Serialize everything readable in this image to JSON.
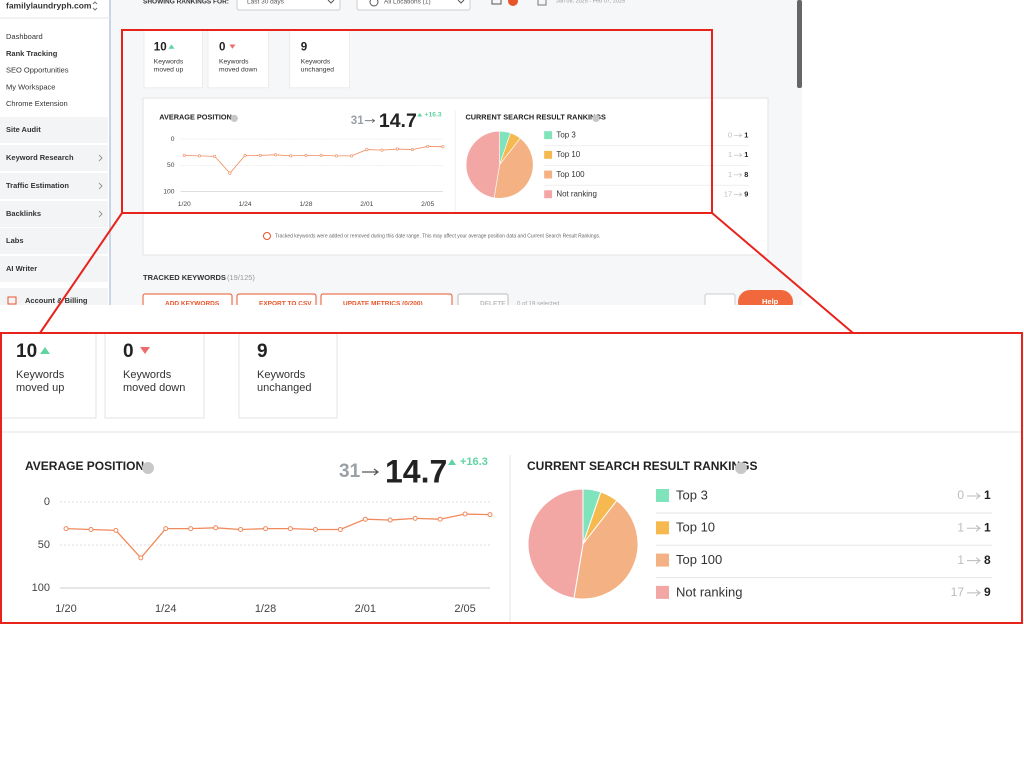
{
  "sidebar": {
    "site": "familylaundryph.com",
    "nav": [
      "Dashboard",
      "Rank Tracking",
      "SEO Opportunities",
      "My Workspace",
      "Chrome Extension"
    ],
    "sections": [
      "Site Audit",
      "Keyword Research",
      "Traffic Estimation",
      "Backlinks",
      "Labs",
      "AI Writer",
      "Account & Billing"
    ]
  },
  "toolbar": {
    "label": "SHOWING RANKINGS FOR:",
    "period": "Last 30 days",
    "location": "All Locations (1)",
    "date_range": "Jan 08, 2025 - Feb 07, 2025"
  },
  "stats": [
    {
      "value": 10,
      "label": "Keywords moved up"
    },
    {
      "value": 0,
      "label": "Keywords moved down"
    },
    {
      "value": 9,
      "label": "Keywords unchanged"
    }
  ],
  "chart_data": [
    {
      "type": "line",
      "title": "AVERAGE POSITION",
      "start_value": 31,
      "current_value": 14.7,
      "change": "+16.3",
      "categories": [
        "1/20",
        null,
        null,
        null,
        "1/24",
        null,
        null,
        null,
        "1/28",
        null,
        null,
        null,
        "2/01",
        null,
        null,
        null,
        "2/05",
        null
      ],
      "values": [
        31,
        32,
        33,
        65,
        31,
        31,
        30,
        32,
        31,
        31,
        32,
        32,
        20,
        21,
        19,
        20,
        14,
        14.7
      ],
      "color": "#f08a5d",
      "ylim": [
        0,
        100
      ],
      "yticks": [
        0,
        50,
        100
      ],
      "y_inverted": true,
      "grid": true
    },
    {
      "type": "pie",
      "title": "CURRENT SEARCH RESULT RANKINGS",
      "categories": [
        "Top 3",
        "Top 10",
        "Top 100",
        "Not ranking"
      ],
      "previous": [
        0,
        1,
        1,
        17
      ],
      "values": [
        1,
        1,
        8,
        9
      ],
      "colors": [
        "#7fe3bb",
        "#f5b94f",
        "#f4b183",
        "#f2a7a5"
      ]
    }
  ],
  "notice": "Tracked keywords were added or removed during this date range. This may affect your average position data and Current Search Result Rankings.",
  "tracked": {
    "title": "TRACKED KEYWORDS",
    "count": "(19/125)",
    "buttons": [
      "ADD KEYWORDS",
      "EXPORT TO CSV",
      "UPDATE METRICS (0/200)",
      "DELETE"
    ],
    "selection": "0 of 19 selected",
    "help": "Help"
  }
}
